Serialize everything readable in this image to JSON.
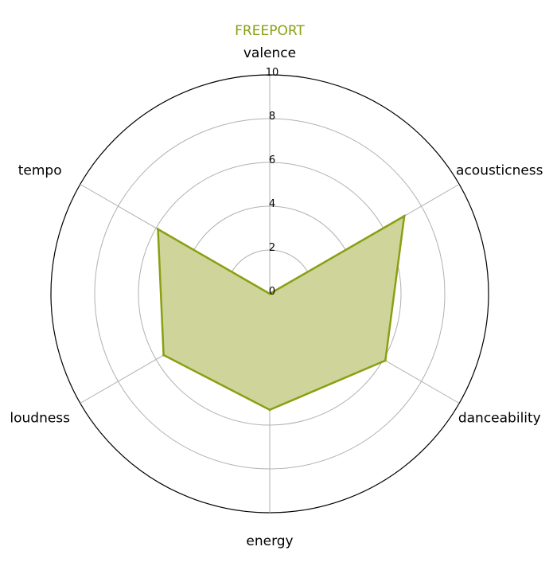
{
  "chart_data": {
    "type": "radar",
    "title": "FREEPORT",
    "title_color": "#8a9f12",
    "axes": [
      "valence",
      "acousticness",
      "danceability",
      "energy",
      "loudness",
      "tempo"
    ],
    "series": [
      {
        "values": [
          0.0,
          7.1,
          6.1,
          5.3,
          5.6,
          5.9
        ],
        "color": "#8a9f12",
        "fill": "#cfd59a"
      }
    ],
    "rlim": [
      0,
      10
    ],
    "ticks": [
      0,
      2,
      4,
      6,
      8,
      10
    ],
    "tick_labels": [
      "0",
      "2",
      "4",
      "6",
      "8",
      "10"
    ],
    "grid": true
  }
}
